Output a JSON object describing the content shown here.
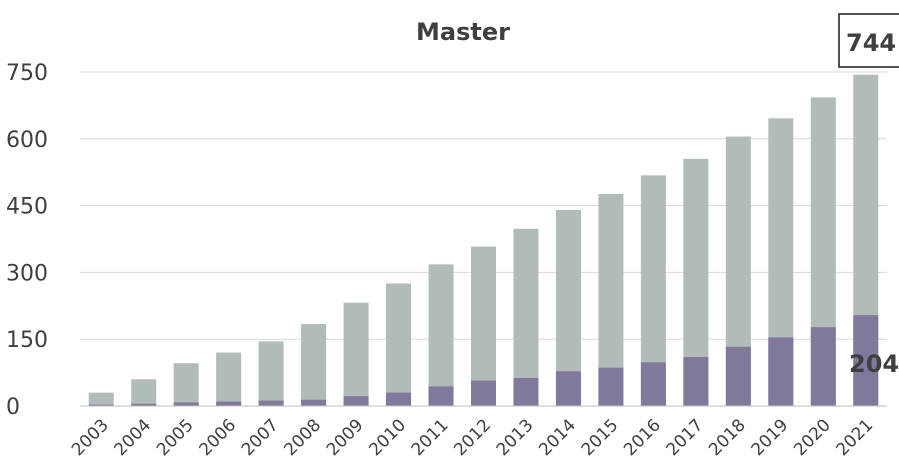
{
  "colors": {
    "total": "#b0bbba",
    "part": "#80799c"
  },
  "chart_data": {
    "type": "bar",
    "title": "Master",
    "xlabel": "",
    "ylabel": "",
    "ylim": [
      0,
      750
    ],
    "yticks": [
      "0",
      "150",
      "300",
      "450",
      "600",
      "750"
    ],
    "grid": true,
    "legend": "none",
    "categories": [
      "2003",
      "2004",
      "2005",
      "2006",
      "2007",
      "2008",
      "2009",
      "2010",
      "2011",
      "2012",
      "2013",
      "2014",
      "2015",
      "2016",
      "2017",
      "2018",
      "2019",
      "2020",
      "2021"
    ],
    "series": [
      {
        "values": [
          30,
          60,
          96,
          120,
          145,
          184,
          232,
          275,
          318,
          358,
          398,
          440,
          476,
          518,
          555,
          605,
          646,
          693,
          744
        ]
      },
      {
        "values": [
          3,
          5,
          8,
          10,
          12,
          14,
          22,
          30,
          44,
          57,
          63,
          78,
          86,
          98,
          110,
          133,
          154,
          177,
          204
        ]
      }
    ],
    "annotations": [
      {
        "text": "744",
        "boxed": true
      },
      {
        "text": "204",
        "boxed": false
      }
    ]
  }
}
